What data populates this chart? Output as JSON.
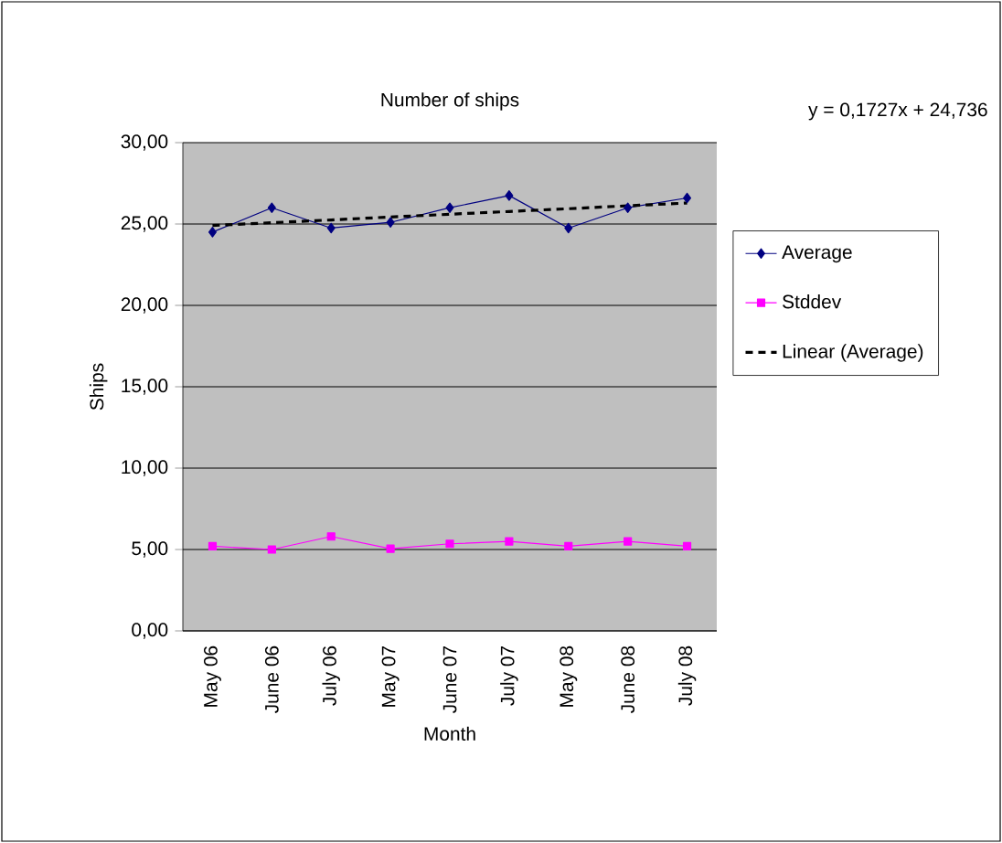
{
  "chart_data": {
    "type": "line",
    "title": "Number of ships",
    "xlabel": "Month",
    "ylabel": "Ships",
    "categories": [
      "May 06",
      "June 06",
      "July 06",
      "May 07",
      "June 07",
      "July 07",
      "May 08",
      "June 08",
      "July 08"
    ],
    "series": [
      {
        "name": "Average",
        "color": "#000080",
        "marker": "diamond",
        "line_style": "solid",
        "values": [
          24.5,
          26.0,
          24.75,
          25.1,
          26.0,
          26.75,
          24.75,
          26.0,
          26.6
        ]
      },
      {
        "name": "Stddev",
        "color": "#ff00ff",
        "marker": "square",
        "line_style": "solid",
        "values": [
          5.2,
          5.0,
          5.8,
          5.05,
          5.35,
          5.5,
          5.2,
          5.5,
          5.2
        ]
      },
      {
        "name": "Linear (Average)",
        "color": "#000000",
        "marker": "none",
        "line_style": "dashed",
        "values": [
          24.91,
          25.08,
          25.25,
          25.43,
          25.6,
          25.77,
          25.94,
          26.12,
          26.29
        ]
      }
    ],
    "ylim": [
      0,
      30
    ],
    "yticks": [
      {
        "value": 0,
        "label": "0,00"
      },
      {
        "value": 5,
        "label": "5,00"
      },
      {
        "value": 10,
        "label": "10,00"
      },
      {
        "value": 15,
        "label": "15,00"
      },
      {
        "value": 20,
        "label": "20,00"
      },
      {
        "value": 25,
        "label": "25,00"
      },
      {
        "value": 30,
        "label": "30,00"
      }
    ],
    "grid": "y",
    "legend": "right",
    "annotations": [
      "y = 0,1727x + 24,736"
    ]
  }
}
